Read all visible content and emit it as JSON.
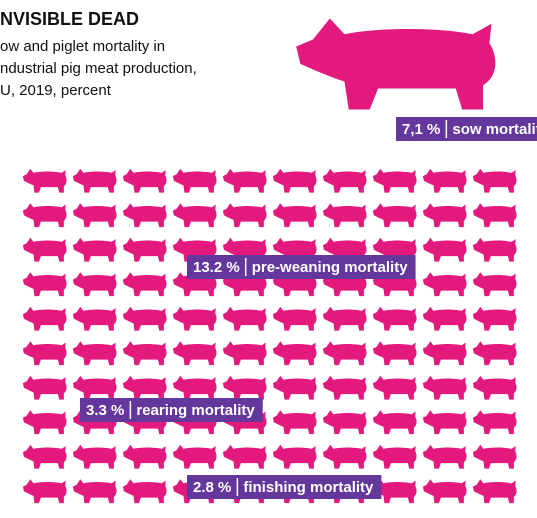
{
  "chart_data": {
    "type": "pictogram",
    "title": "NVISIBLE DEAD",
    "subtitle": [
      "ow and piglet mortality in",
      "ndustrial pig meat production,",
      "U, 2019, percent"
    ],
    "base_color": "#e3197e",
    "color": "#63379c",
    "grid_units": 100,
    "sow": {
      "name": "sow mortality",
      "value": 7.1,
      "value_label": "7,1 %"
    },
    "series": [
      {
        "name": "pre-weaning mortality",
        "value": 13.2,
        "value_label": "13.2 %"
      },
      {
        "name": "rearing mortality",
        "value": 3.3,
        "value_label": "3.3 %"
      },
      {
        "name": "finishing mortality",
        "value": 2.8,
        "value_label": "2.8 %"
      }
    ]
  }
}
